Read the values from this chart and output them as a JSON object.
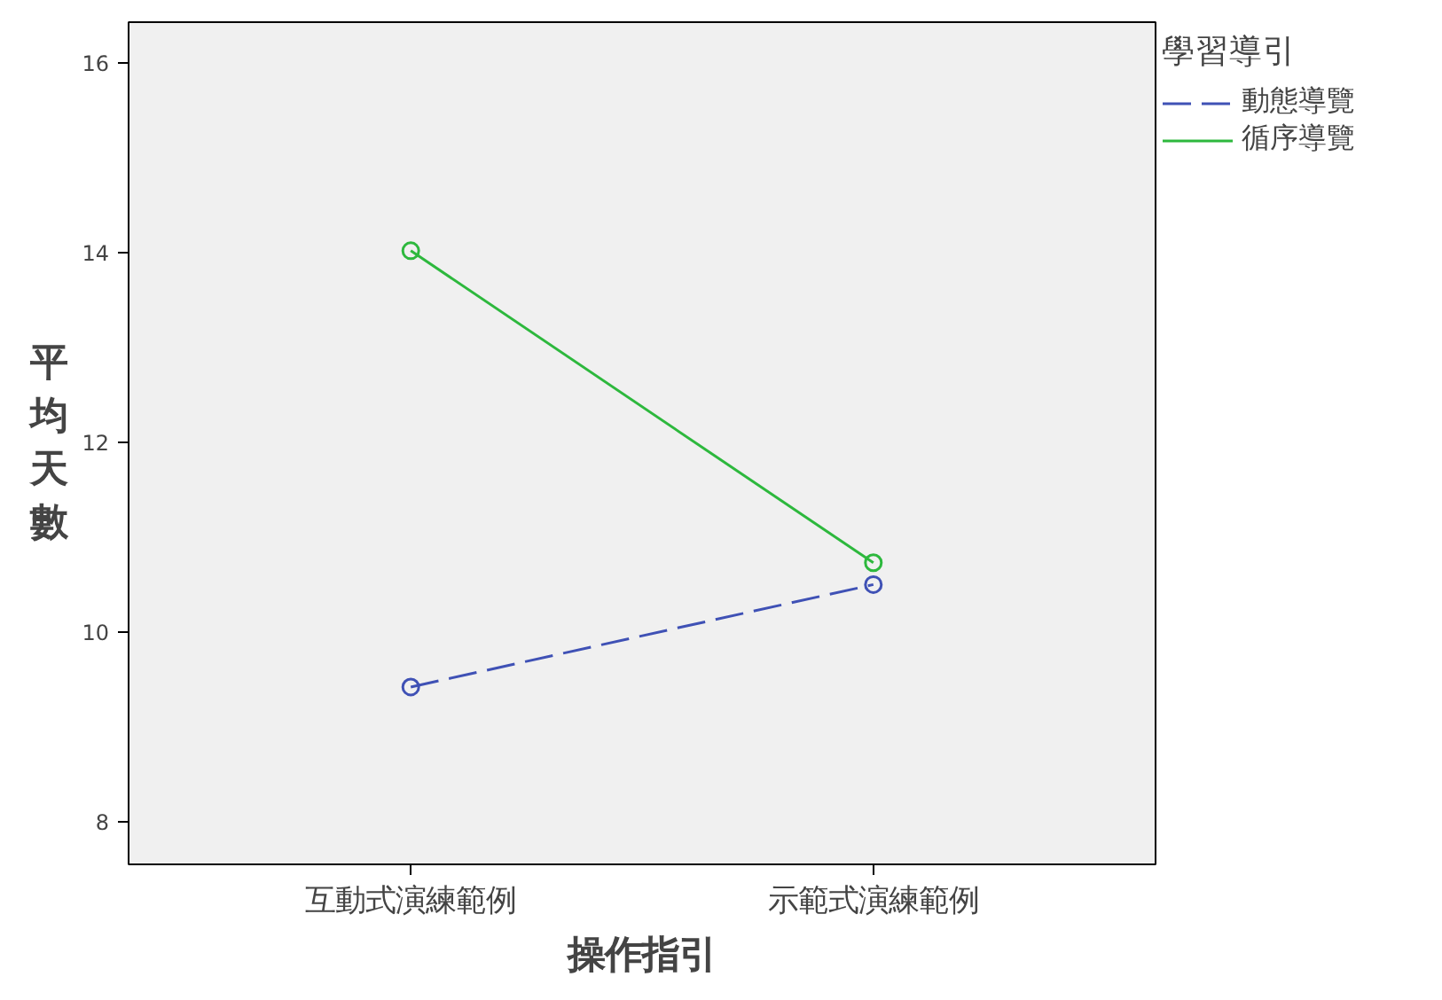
{
  "chart_data": {
    "type": "line",
    "xlabel": "操作指引",
    "ylabel": "平均天數",
    "legend_title": "學習導引",
    "categories": [
      "互動式演練範例",
      "示範式演練範例"
    ],
    "series": [
      {
        "name": "動態導覽",
        "color": "#3f51b5",
        "values": [
          9.42,
          10.5
        ],
        "line_style": "dashed"
      },
      {
        "name": "循序導覽",
        "color": "#2db83d",
        "values": [
          14.02,
          10.73
        ],
        "line_style": "solid"
      }
    ],
    "ylim": [
      7.55,
      16.43
    ],
    "yticks": [
      8,
      10,
      12,
      14,
      16
    ],
    "grid": false,
    "legend": "top right",
    "marker": "circle"
  }
}
